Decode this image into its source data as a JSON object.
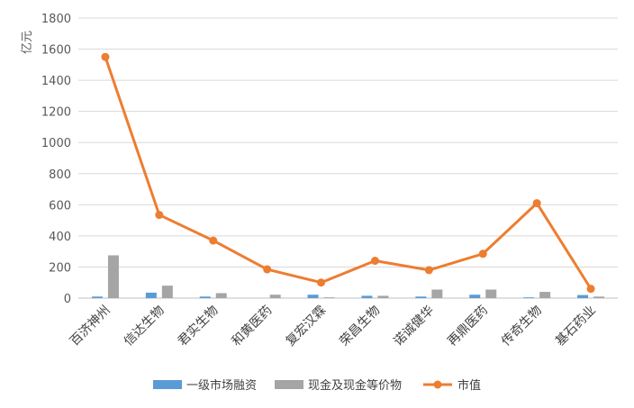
{
  "chart_data": {
    "type": "bar",
    "ylabel": "亿元",
    "ylim": [
      0,
      1800
    ],
    "yticks": [
      0,
      200,
      400,
      600,
      800,
      1000,
      1200,
      1400,
      1600,
      1800
    ],
    "grid": true,
    "legend_position": "bottom",
    "categories": [
      "百济神州",
      "信达生物",
      "君实生物",
      "和黄医药",
      "复宏汉霖",
      "荣昌生物",
      "诺诚健华",
      "再鼎医药",
      "传奇生物",
      "基石药业"
    ],
    "series": [
      {
        "name": "一级市场融资",
        "kind": "bar",
        "color": "#5B9BD5",
        "values": [
          10,
          35,
          10,
          0,
          22,
          15,
          10,
          22,
          5,
          20
        ]
      },
      {
        "name": "现金及现金等价物",
        "kind": "bar",
        "color": "#A5A5A5",
        "values": [
          275,
          80,
          32,
          22,
          5,
          15,
          55,
          55,
          40,
          10
        ]
      },
      {
        "name": "市值",
        "kind": "line",
        "color": "#ED7D31",
        "values": [
          1550,
          535,
          370,
          185,
          100,
          240,
          180,
          285,
          610,
          60
        ]
      }
    ]
  }
}
